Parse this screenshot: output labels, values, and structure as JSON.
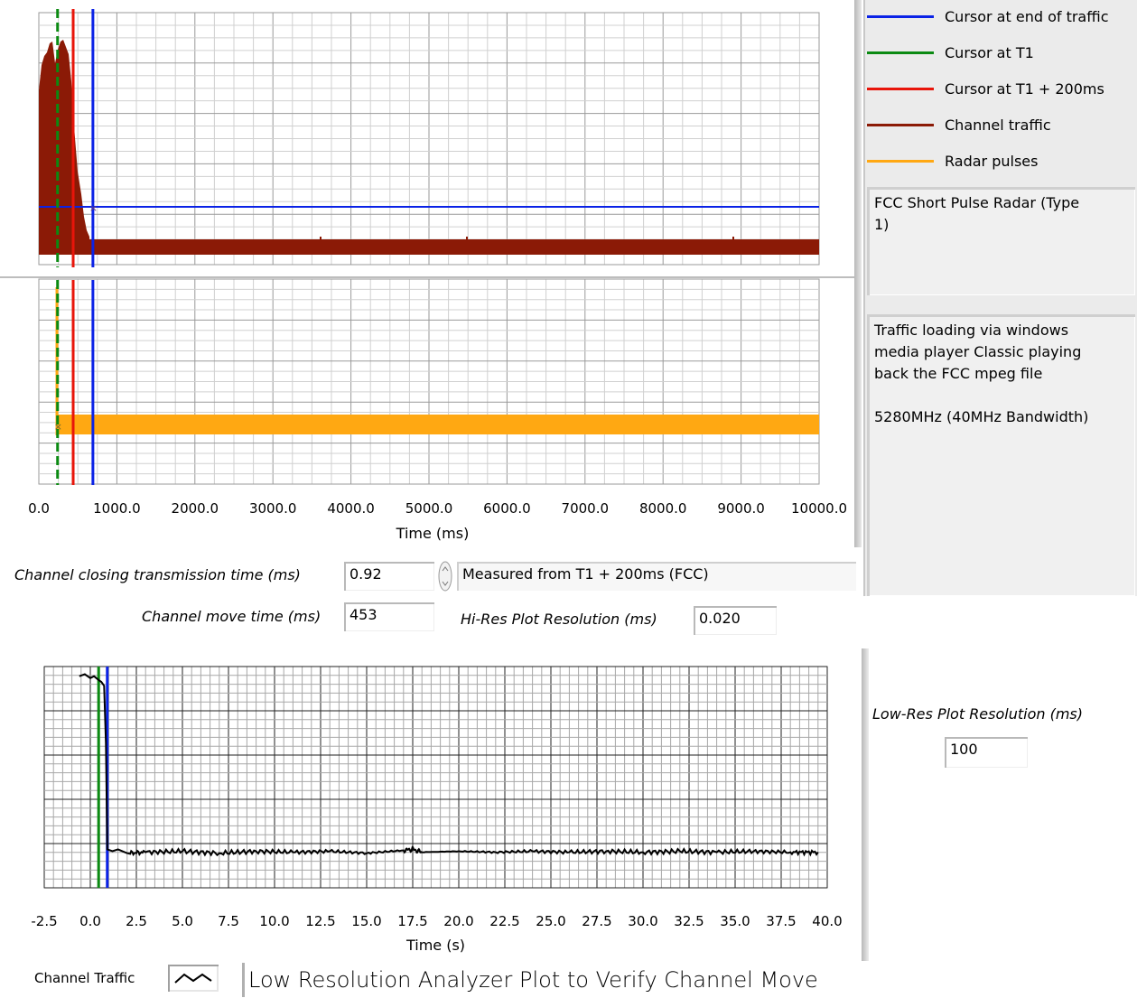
{
  "legend": {
    "items": [
      {
        "label": "Cursor at end of traffic",
        "color": "#0a22e6"
      },
      {
        "label": "Cursor at T1",
        "color": "#0b8a12"
      },
      {
        "label": "Cursor at T1 + 200ms",
        "color": "#e8150a"
      },
      {
        "label": "Channel traffic",
        "color": "#8b1a06"
      },
      {
        "label": "Radar pulses",
        "color": "#ffa812"
      }
    ]
  },
  "radar_type_text": "FCC Short Pulse Radar (Type\n1)",
  "notes_text": "Traffic loading via windows\nmedia player Classic playing\nback the FCC mpeg file\n\n5280MHz (40MHz Bandwidth)",
  "controls": {
    "closing_time_label": "Channel closing transmission time (ms)",
    "closing_time_value": "0.92",
    "measured_from": "Measured from T1 + 200ms (FCC)",
    "move_time_label": "Channel move time (ms)",
    "move_time_value": "453",
    "hires_label": "Hi-Res Plot Resolution (ms)",
    "hires_value": "0.020",
    "lowres_label": "Low-Res Plot Resolution (ms)",
    "lowres_value": "100"
  },
  "colors": {
    "blue_cursor": "#0a22e6",
    "green_cursor": "#0b8a12",
    "red_cursor": "#e8150a",
    "traffic": "#8b1a06",
    "radar": "#ffa812"
  },
  "chart_data": [
    {
      "type": "line",
      "xlabel": "Time (ms)",
      "xlim": [
        0,
        10000
      ],
      "x_ticks": [
        "0.0",
        "1000.0",
        "2000.0",
        "3000.0",
        "4000.0",
        "5000.0",
        "6000.0",
        "7000.0",
        "8000.0",
        "9000.0",
        "10000.0"
      ],
      "cursors_x": {
        "green_T1": 240,
        "red_T1_plus_200ms": 440,
        "blue_end_of_traffic": 693
      },
      "series": [
        {
          "name": "Channel traffic",
          "description_x_range": [
            0,
            10000
          ]
        },
        {
          "name": "Radar pulses",
          "description_x_range": [
            240,
            10000
          ]
        }
      ],
      "grid": true
    },
    {
      "type": "line",
      "xlabel": "Time (s)",
      "xlim": [
        -2.5,
        40.0
      ],
      "x_ticks": [
        "-2.5",
        "0.0",
        "2.5",
        "5.0",
        "7.5",
        "10.0",
        "12.5",
        "15.0",
        "17.5",
        "20.0",
        "22.5",
        "25.0",
        "27.5",
        "30.0",
        "32.5",
        "35.0",
        "37.5",
        "40.0"
      ],
      "cursors_x": {
        "green": 0.45,
        "blue": 0.92
      },
      "series": [
        {
          "name": "Channel Traffic",
          "points": [
            [
              -0.6,
              0.95
            ],
            [
              -0.3,
              0.96
            ],
            [
              0.0,
              0.94
            ],
            [
              0.2,
              0.95
            ],
            [
              0.45,
              0.93
            ],
            [
              0.6,
              0.92
            ],
            [
              0.75,
              0.9
            ],
            [
              0.85,
              0.6
            ],
            [
              0.92,
              0.05
            ],
            [
              1.2,
              0.04
            ],
            [
              1.5,
              0.05
            ],
            [
              2.0,
              0.03
            ],
            [
              3,
              0.035
            ],
            [
              5,
              0.04
            ],
            [
              7,
              0.03
            ],
            [
              9,
              0.04
            ],
            [
              11,
              0.035
            ],
            [
              13,
              0.04
            ],
            [
              15,
              0.03
            ],
            [
              17,
              0.045
            ],
            [
              17.5,
              0.05
            ],
            [
              18,
              0.035
            ],
            [
              20,
              0.04
            ],
            [
              22,
              0.035
            ],
            [
              24,
              0.04
            ],
            [
              26,
              0.035
            ],
            [
              28,
              0.04
            ],
            [
              30,
              0.035
            ],
            [
              32,
              0.04
            ],
            [
              34,
              0.035
            ],
            [
              36,
              0.04
            ],
            [
              38,
              0.035
            ],
            [
              39.5,
              0.035
            ]
          ]
        }
      ],
      "grid": true
    }
  ],
  "plot_legend": {
    "label": "Channel Traffic",
    "title": "Low Resolution Analyzer Plot to Verify Channel Move"
  }
}
